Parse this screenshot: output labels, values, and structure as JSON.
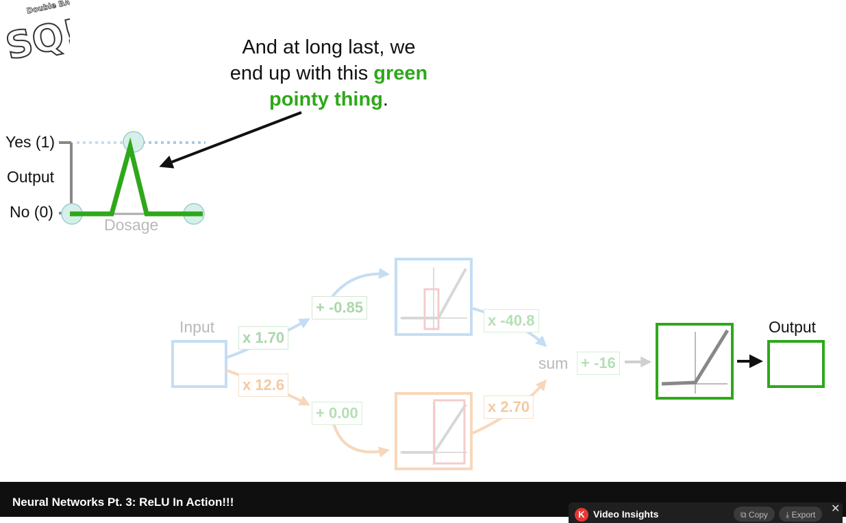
{
  "logo": {
    "text_top": "Double BAM!!",
    "text_main": "SQ!"
  },
  "caption": {
    "line1": "And at long last, we",
    "line2_pre": "end up with this ",
    "line2_green": "green",
    "line3_green": "pointy thing",
    "line3_post": "."
  },
  "plot": {
    "yes_label": "Yes (1)",
    "output_label": "Output",
    "no_label": "No (0)",
    "x_label": "Dosage"
  },
  "network": {
    "input_label": "Input",
    "output_label": "Output",
    "sum_label": "sum",
    "w_top": "x 1.70",
    "b_top": "+ -0.85",
    "w_bottom": "x 12.6",
    "b_bottom": "+ 0.00",
    "w_top_out": "x -40.8",
    "w_bottom_out": "x 2.70",
    "b_final": "+ -16"
  },
  "player": {
    "title": "Neural Networks Pt. 3: ReLU In Action!!!",
    "insights_icon": "K",
    "insights_title": "Video Insights",
    "copy_label": "Copy",
    "export_label": "Export",
    "close_label": "✕"
  },
  "colors": {
    "green": "#2ea81a",
    "blue_faded": "#c4ddf3",
    "orange_faded": "#f7d7bb",
    "gray": "#888888"
  }
}
